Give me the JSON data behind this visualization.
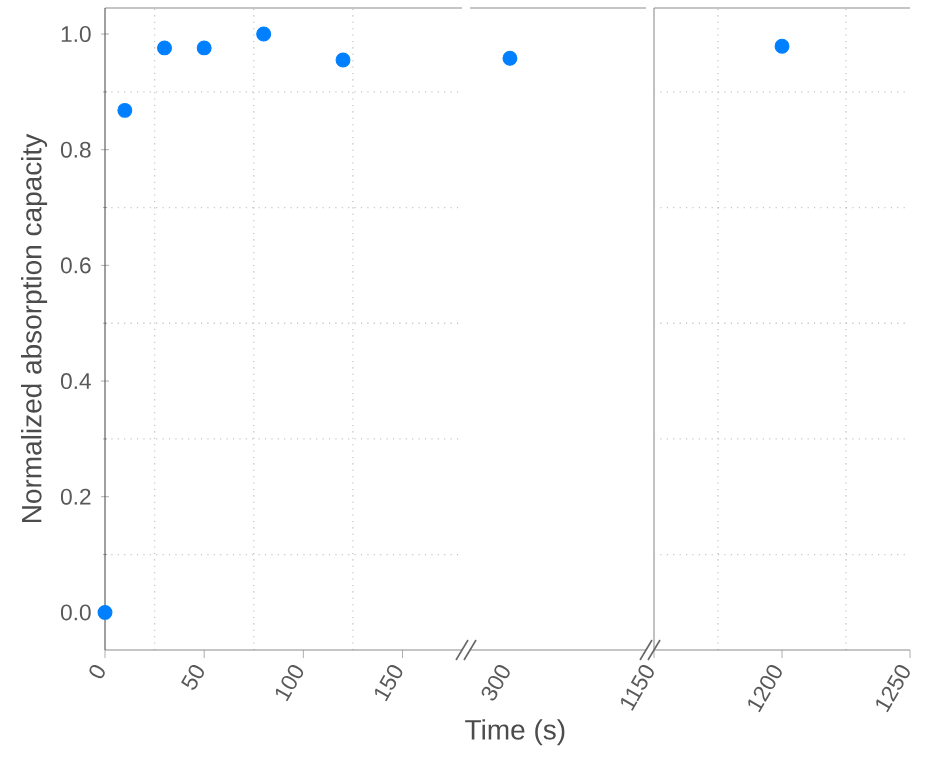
{
  "chart_data": [
    {
      "type": "scatter",
      "ylabel": "Normalized absorption capacity",
      "x": [
        0,
        10,
        30,
        50,
        80,
        120
      ],
      "values": [
        0.0,
        0.868,
        0.976,
        0.976,
        1.0,
        0.955
      ],
      "color": "#0080ff",
      "marker": "circle",
      "xlim": [
        0,
        180
      ],
      "xticks": [
        0,
        50,
        100,
        150
      ],
      "ylim": [
        -0.065,
        1.045
      ],
      "yticks": [
        {
          "value": 0,
          "label": "0.0"
        },
        0.2,
        0.4,
        0.6,
        0.8,
        {
          "value": 1,
          "label": "1.0"
        }
      ],
      "grid": true
    },
    {
      "type": "scatter",
      "xlabel": "Time (s)",
      "categories": [
        "300"
      ],
      "values": [
        0.958
      ],
      "color": "#0080ff",
      "marker": "circle",
      "ylim": [
        -0.065,
        1.045
      ],
      "grid": true,
      "tick_labels": "x"
    },
    {
      "type": "scatter",
      "x": [
        1200
      ],
      "values": [
        0.979
      ],
      "color": "#0080ff",
      "marker": "circle",
      "xlim": [
        1150,
        1250
      ],
      "xticks": [
        1150,
        1200,
        1250
      ],
      "ylim": [
        -0.065,
        1.045
      ],
      "grid": true,
      "tick_labels": "x"
    }
  ]
}
